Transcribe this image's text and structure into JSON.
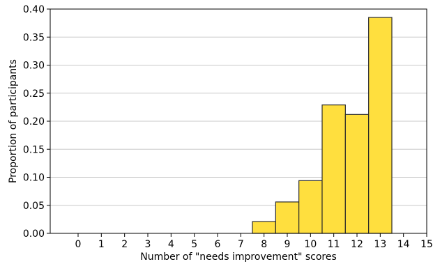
{
  "chart_data": {
    "type": "bar",
    "title": "",
    "xlabel": "Number of \"needs improvement\" scores",
    "ylabel": "Proportion of participants",
    "categories": [
      "0",
      "1",
      "2",
      "3",
      "4",
      "5",
      "6",
      "7",
      "8",
      "9",
      "10",
      "11",
      "12",
      "13",
      "14",
      "15"
    ],
    "values": [
      0,
      0,
      0,
      0,
      0,
      0,
      0,
      0,
      0.021,
      0.056,
      0.094,
      0.229,
      0.212,
      0.385,
      0,
      0
    ],
    "xlim": [
      -1.2,
      15
    ],
    "ylim": [
      0,
      0.4
    ],
    "yticks": [
      "0.00",
      "0.05",
      "0.10",
      "0.15",
      "0.20",
      "0.25",
      "0.30",
      "0.35",
      "0.40"
    ],
    "ytick_values": [
      0,
      0.05,
      0.1,
      0.15,
      0.2,
      0.25,
      0.3,
      0.35,
      0.4
    ],
    "grid": "horizontal",
    "bar_color": "#ffdf3e",
    "edge_color": "#2b2b2b"
  }
}
